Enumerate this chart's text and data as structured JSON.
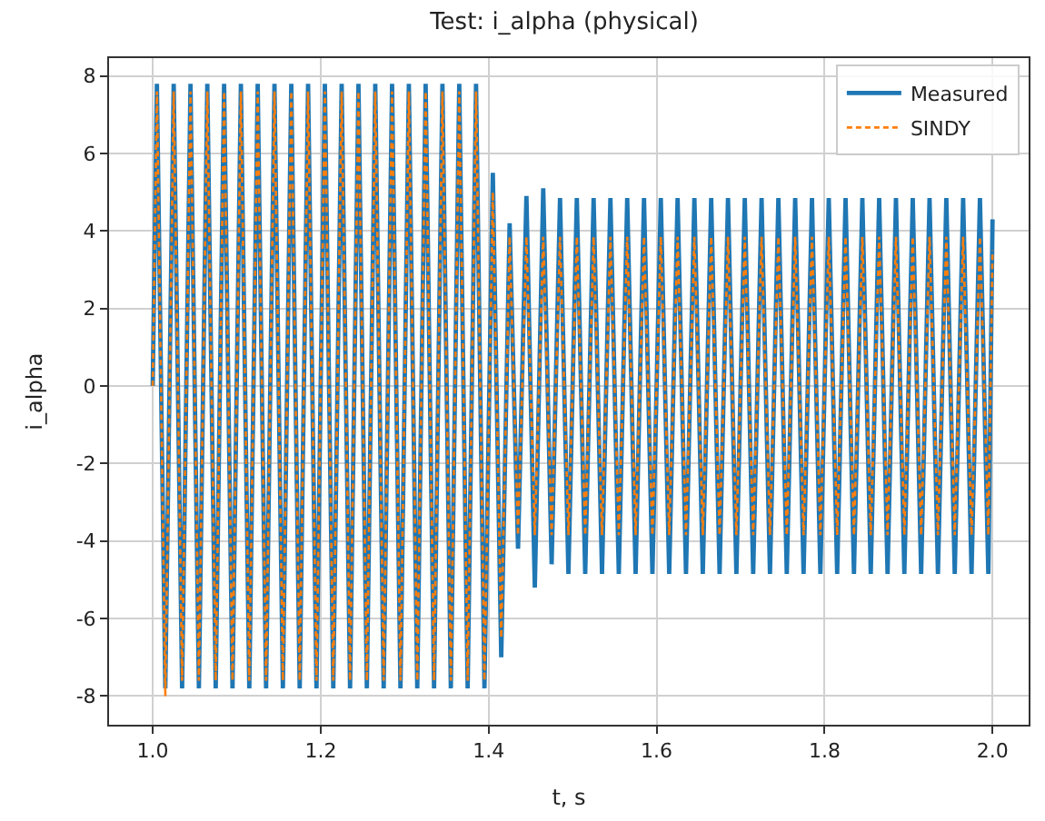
{
  "chart_data": {
    "type": "line",
    "title": "Test: i_alpha (physical)",
    "xlabel": "t, s",
    "ylabel": "i_alpha",
    "x": [
      1.0,
      1.005,
      1.015,
      1.025,
      1.035,
      1.045,
      1.055,
      1.065,
      1.075,
      1.085,
      1.095,
      1.105,
      1.115,
      1.125,
      1.135,
      1.145,
      1.155,
      1.165,
      1.175,
      1.185,
      1.195,
      1.205,
      1.215,
      1.225,
      1.235,
      1.245,
      1.255,
      1.265,
      1.275,
      1.285,
      1.295,
      1.305,
      1.315,
      1.325,
      1.335,
      1.345,
      1.355,
      1.365,
      1.375,
      1.385,
      1.395,
      1.405,
      1.415,
      1.425,
      1.435,
      1.445,
      1.455,
      1.465,
      1.475,
      1.485,
      1.495,
      1.505,
      1.515,
      1.525,
      1.535,
      1.545,
      1.555,
      1.565,
      1.575,
      1.585,
      1.595,
      1.605,
      1.615,
      1.625,
      1.635,
      1.645,
      1.655,
      1.665,
      1.675,
      1.685,
      1.695,
      1.705,
      1.715,
      1.725,
      1.735,
      1.745,
      1.755,
      1.765,
      1.775,
      1.785,
      1.795,
      1.805,
      1.815,
      1.825,
      1.835,
      1.845,
      1.855,
      1.865,
      1.875,
      1.885,
      1.895,
      1.905,
      1.915,
      1.925,
      1.935,
      1.945,
      1.955,
      1.965,
      1.975,
      1.985,
      1.995,
      2.0
    ],
    "series": [
      {
        "name": "Measured",
        "color": "#1f77b4",
        "line_style": "solid",
        "values": [
          0,
          7.8,
          -7.8,
          7.8,
          -7.8,
          7.8,
          -7.8,
          7.8,
          -7.8,
          7.8,
          -7.8,
          7.8,
          -7.8,
          7.8,
          -7.8,
          7.8,
          -7.8,
          7.8,
          -7.8,
          7.8,
          -7.8,
          7.8,
          -7.8,
          7.8,
          -7.8,
          7.8,
          -7.8,
          7.8,
          -7.8,
          7.8,
          -7.8,
          7.8,
          -7.8,
          7.8,
          -7.8,
          7.8,
          -7.8,
          7.8,
          -7.8,
          7.8,
          -7.8,
          5.5,
          -7.0,
          4.2,
          -4.2,
          4.9,
          -5.2,
          5.1,
          -4.6,
          4.85,
          -4.85,
          4.85,
          -4.85,
          4.85,
          -4.85,
          4.85,
          -4.85,
          4.85,
          -4.85,
          4.85,
          -4.85,
          4.85,
          -4.85,
          4.85,
          -4.85,
          4.85,
          -4.85,
          4.85,
          -4.85,
          4.85,
          -4.85,
          4.85,
          -4.85,
          4.85,
          -4.85,
          4.85,
          -4.85,
          4.85,
          -4.85,
          4.85,
          -4.85,
          4.85,
          -4.85,
          4.85,
          -4.85,
          4.85,
          -4.85,
          4.85,
          -4.85,
          4.85,
          -4.85,
          4.85,
          -4.85,
          4.85,
          -4.85,
          4.85,
          -4.85,
          4.85,
          -4.85,
          4.85,
          -4.85,
          4.3
        ]
      },
      {
        "name": "SINDY",
        "color": "#ff7f0e",
        "line_style": "dashed",
        "values": [
          0,
          7.6,
          -8.0,
          7.6,
          -7.6,
          7.6,
          -7.6,
          7.6,
          -7.6,
          7.6,
          -7.6,
          7.6,
          -7.6,
          7.6,
          -7.6,
          7.6,
          -7.6,
          7.6,
          -7.6,
          7.6,
          -7.6,
          7.6,
          -7.6,
          7.6,
          -7.6,
          7.6,
          -7.6,
          7.6,
          -7.6,
          7.6,
          -7.6,
          7.6,
          -7.6,
          7.6,
          -7.6,
          7.6,
          -7.6,
          7.6,
          -7.6,
          7.6,
          -7.6,
          5.0,
          -6.5,
          3.85,
          -3.85,
          3.85,
          -3.85,
          3.85,
          -3.85,
          3.85,
          -3.85,
          3.85,
          -3.85,
          3.85,
          -3.85,
          3.85,
          -3.85,
          3.85,
          -3.85,
          3.85,
          -3.85,
          3.85,
          -3.85,
          3.85,
          -3.85,
          3.85,
          -3.85,
          3.85,
          -3.85,
          3.85,
          -3.85,
          3.85,
          -3.85,
          3.85,
          -3.85,
          3.85,
          -3.85,
          3.85,
          -3.85,
          3.85,
          -3.85,
          3.85,
          -3.85,
          3.85,
          -3.85,
          3.85,
          -3.85,
          3.85,
          -3.85,
          3.85,
          -3.85,
          3.85,
          -3.85,
          3.85,
          -3.85,
          3.85,
          -3.85,
          3.85,
          -3.85,
          3.85,
          -3.85,
          3.5
        ]
      }
    ],
    "xlim": [
      0.948,
      2.043
    ],
    "ylim": [
      -8.74,
      8.46
    ],
    "xticks": [
      {
        "value": 1.0,
        "label": "1.0"
      },
      {
        "value": 1.2,
        "label": "1.2"
      },
      {
        "value": 1.4,
        "label": "1.4"
      },
      {
        "value": 1.6,
        "label": "1.6"
      },
      {
        "value": 1.8,
        "label": "1.8"
      },
      {
        "value": 2.0,
        "label": "2.0"
      }
    ],
    "yticks": [
      -8,
      -6,
      -4,
      -2,
      0,
      2,
      4,
      6,
      8
    ],
    "grid": true,
    "legend": "top right"
  }
}
